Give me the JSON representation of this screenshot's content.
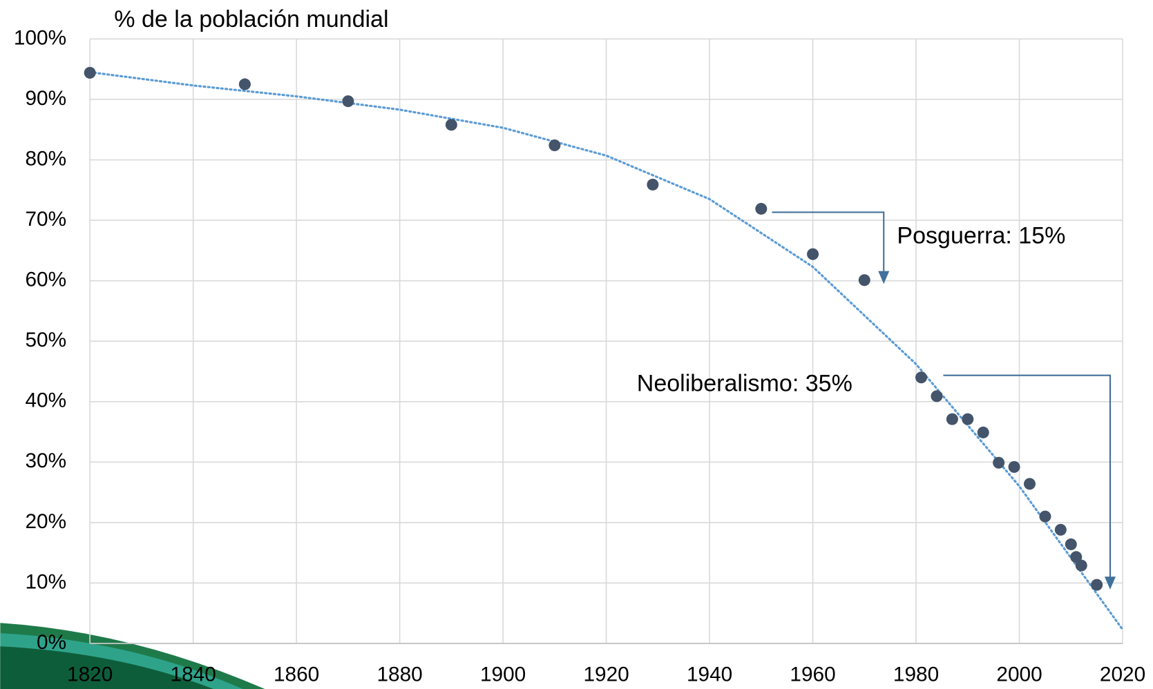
{
  "chart_data": {
    "type": "scatter",
    "title": "% de la población mundial",
    "annotations": [
      "Posguerra: 15%",
      "Neoliberalismo: 35%"
    ],
    "xlim": [
      1820,
      2020
    ],
    "xticks": [
      1820,
      1840,
      1860,
      1880,
      1900,
      1920,
      1940,
      1960,
      1980,
      2000,
      2020
    ],
    "ylim": [
      0,
      100
    ],
    "yticks": [
      {
        "value": 0,
        "label": "0%"
      },
      {
        "value": 10,
        "label": "10%"
      },
      {
        "value": 20,
        "label": "20%"
      },
      {
        "value": 30,
        "label": "30%"
      },
      {
        "value": 40,
        "label": "40%"
      },
      {
        "value": 50,
        "label": "50%"
      },
      {
        "value": 60,
        "label": "60%"
      },
      {
        "value": 70,
        "label": "70%"
      },
      {
        "value": 80,
        "label": "80%"
      },
      {
        "value": 90,
        "label": "90%"
      },
      {
        "value": 100,
        "label": "100%"
      }
    ],
    "grid": true,
    "series": [
      {
        "color": "#44546a",
        "x": [
          1820,
          1850,
          1870,
          1890,
          1910,
          1929,
          1950,
          1960,
          1970,
          1981,
          1984,
          1987,
          1990,
          1993,
          1996,
          1999,
          2002,
          2005,
          2008,
          2010,
          2011,
          2012,
          2015
        ],
        "values": [
          94.4,
          92.5,
          89.7,
          85.8,
          82.4,
          75.9,
          71.9,
          64.4,
          60.1,
          44.0,
          40.9,
          37.1,
          37.1,
          34.9,
          29.9,
          29.2,
          26.4,
          21.0,
          18.8,
          16.4,
          14.3,
          12.9,
          9.7
        ]
      },
      {
        "color": "#5b9bd5",
        "style": "dotted",
        "x": [
          1820,
          1840,
          1860,
          1880,
          1900,
          1920,
          1940,
          1960,
          1980,
          2000,
          2020
        ],
        "values": [
          94.5,
          92.3,
          90.5,
          88.3,
          85.3,
          80.7,
          73.5,
          62.3,
          46.2,
          26.0,
          2.3
        ]
      }
    ]
  }
}
